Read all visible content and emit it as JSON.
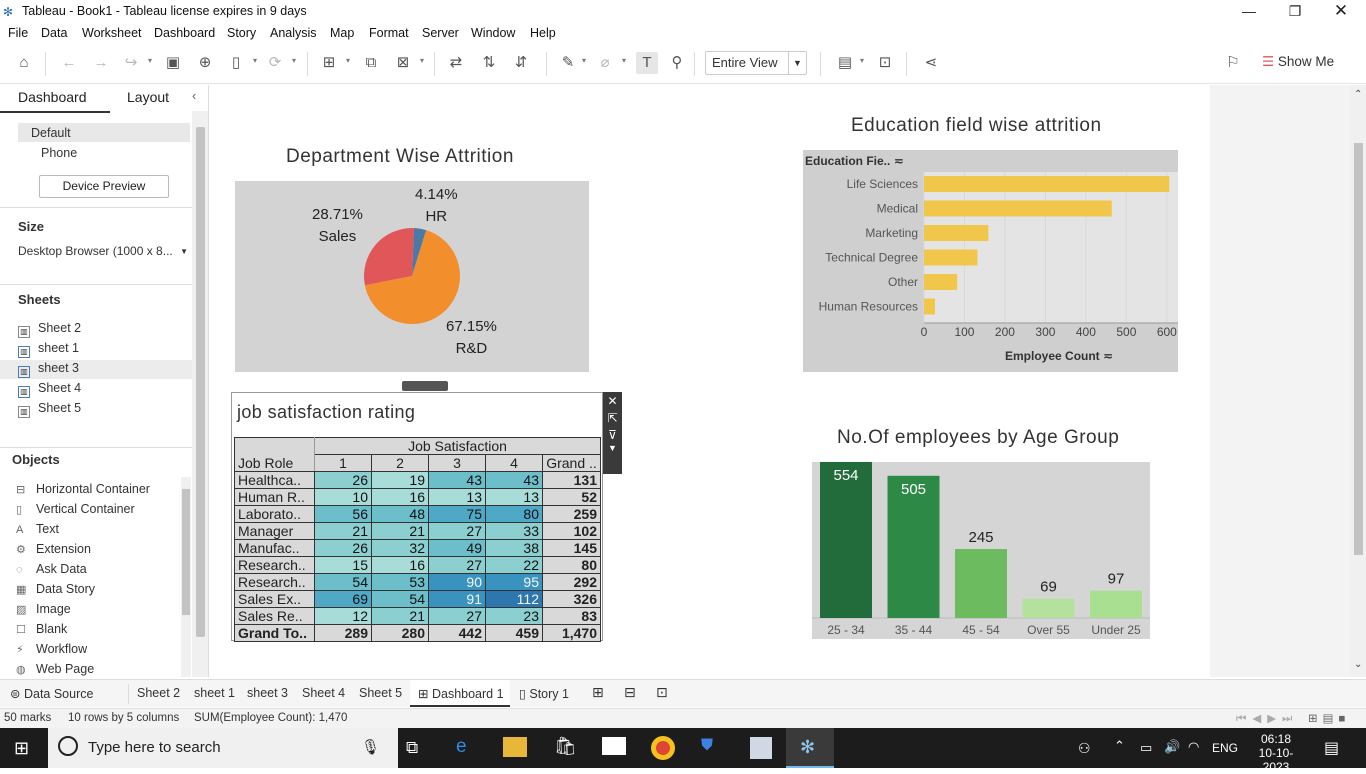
{
  "window": {
    "title": "Tableau - Book1 - Tableau license expires in 9 days"
  },
  "menu": [
    "File",
    "Data",
    "Worksheet",
    "Dashboard",
    "Story",
    "Analysis",
    "Map",
    "Format",
    "Server",
    "Window",
    "Help"
  ],
  "toolbar": {
    "view_mode": "Entire View",
    "show_me": "Show Me"
  },
  "sidebar": {
    "tabs": [
      "Dashboard",
      "Layout"
    ],
    "device": {
      "default": "Default",
      "phone": "Phone",
      "preview_button": "Device Preview"
    },
    "size": {
      "heading": "Size",
      "value": "Desktop Browser (1000 x 8..."
    },
    "sheets": {
      "heading": "Sheets",
      "items": [
        "Sheet 2",
        "sheet 1",
        "sheet 3",
        "Sheet 4",
        "Sheet 5"
      ]
    },
    "objects": {
      "heading": "Objects",
      "items": [
        "Horizontal Container",
        "Vertical Container",
        "Text",
        "Extension",
        "Ask Data",
        "Data Story",
        "Image",
        "Blank",
        "Workflow",
        "Web Page"
      ]
    }
  },
  "dashboard": {
    "pie": {
      "title": "Department Wise Attrition",
      "labels": {
        "sales_pct": "28.71%",
        "sales_name": "Sales",
        "hr_pct": "4.14%",
        "hr_name": "HR",
        "rd_pct": "67.15%",
        "rd_name": "R&D"
      }
    },
    "edu": {
      "title": "Education  field wise attrition",
      "row_header": "Education Fie..",
      "x_axis_title": "Employee Count"
    },
    "job": {
      "title": "job satisfaction rating",
      "col_group": "Job Satisfaction",
      "row_header": "Job Role",
      "columns": [
        "1",
        "2",
        "3",
        "4",
        "Grand .."
      ],
      "rows": [
        {
          "role": "Healthca..",
          "v": [
            "26",
            "19",
            "43",
            "43"
          ],
          "total": "131"
        },
        {
          "role": "Human R..",
          "v": [
            "10",
            "16",
            "13",
            "13"
          ],
          "total": "52"
        },
        {
          "role": "Laborato..",
          "v": [
            "56",
            "48",
            "75",
            "80"
          ],
          "total": "259"
        },
        {
          "role": "Manager",
          "v": [
            "21",
            "21",
            "27",
            "33"
          ],
          "total": "102"
        },
        {
          "role": "Manufac..",
          "v": [
            "26",
            "32",
            "49",
            "38"
          ],
          "total": "145"
        },
        {
          "role": "Research..",
          "v": [
            "15",
            "16",
            "27",
            "22"
          ],
          "total": "80"
        },
        {
          "role": "Research..",
          "v": [
            "54",
            "53",
            "90",
            "95"
          ],
          "total": "292"
        },
        {
          "role": "Sales Ex..",
          "v": [
            "69",
            "54",
            "91",
            "112"
          ],
          "total": "326"
        },
        {
          "role": "Sales Re..",
          "v": [
            "12",
            "21",
            "27",
            "23"
          ],
          "total": "83"
        }
      ],
      "grand": {
        "role": "Grand To..",
        "v": [
          "289",
          "280",
          "442",
          "459"
        ],
        "total": "1,470"
      }
    },
    "age": {
      "title": "No.Of employees by Age Group"
    }
  },
  "chart_data": [
    {
      "type": "pie",
      "title": "Department Wise Attrition",
      "slices": [
        {
          "name": "R&D",
          "value": 67.15,
          "color": "#f28e2b"
        },
        {
          "name": "Sales",
          "value": 28.71,
          "color": "#e15759"
        },
        {
          "name": "HR",
          "value": 4.14,
          "color": "#4e79a7"
        }
      ]
    },
    {
      "type": "bar",
      "orientation": "horizontal",
      "title": "Education  field wise attrition",
      "categories": [
        "Life Sciences",
        "Medical",
        "Marketing",
        "Technical Degree",
        "Other",
        "Human Resources"
      ],
      "values": [
        606,
        464,
        159,
        132,
        82,
        27
      ],
      "xlabel": "Employee Count",
      "xlim": [
        0,
        630
      ],
      "ticks": [
        0,
        100,
        200,
        300,
        400,
        500,
        600
      ],
      "color": "#f0c74b"
    },
    {
      "type": "bar",
      "title": "No.Of employees by Age Group",
      "categories": [
        "25 - 34",
        "35 - 44",
        "45 - 54",
        "Over 55",
        "Under 25"
      ],
      "values": [
        554,
        505,
        245,
        69,
        97
      ],
      "colors": [
        "#226b3a",
        "#2d8a46",
        "#6dbb5f",
        "#b4e29e",
        "#a8df90"
      ],
      "ylim": [
        0,
        554
      ]
    }
  ],
  "tabs": [
    "Data Source",
    "Sheet 2",
    "sheet 1",
    "sheet 3",
    "Sheet 4",
    "Sheet 5",
    "Dashboard 1",
    "Story 1"
  ],
  "status": {
    "marks": "50 marks",
    "dims": "10 rows by 5 columns",
    "sum": "SUM(Employee Count): 1,470"
  },
  "taskbar": {
    "search_placeholder": "Type here to search",
    "lang": "ENG",
    "time": "06:18",
    "date": "10-10-2023"
  }
}
